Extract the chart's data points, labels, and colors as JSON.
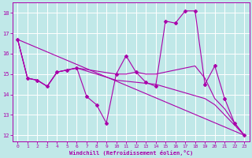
{
  "xlabel": "Windchill (Refroidissement éolien,°C)",
  "xlim": [
    -0.5,
    23.5
  ],
  "ylim": [
    11.7,
    18.5
  ],
  "xticks": [
    0,
    1,
    2,
    3,
    4,
    5,
    6,
    7,
    8,
    9,
    10,
    11,
    12,
    13,
    14,
    15,
    16,
    17,
    18,
    19,
    20,
    21,
    22,
    23
  ],
  "yticks": [
    12,
    13,
    14,
    15,
    16,
    17,
    18
  ],
  "bg_color": "#c0e8e8",
  "line_color": "#aa00aa",
  "grid_color": "#ffffff",
  "lines": [
    {
      "x": [
        0,
        1,
        2,
        3,
        4,
        5,
        6,
        7,
        8,
        9,
        10,
        11,
        12,
        13,
        14,
        15,
        16,
        17,
        18,
        19,
        20,
        21,
        22,
        23
      ],
      "y": [
        16.7,
        14.8,
        14.7,
        14.4,
        15.1,
        15.2,
        15.3,
        13.9,
        13.5,
        12.6,
        15.0,
        15.9,
        15.1,
        14.6,
        14.4,
        17.6,
        17.5,
        18.1,
        18.1,
        14.5,
        15.4,
        13.8,
        12.6,
        12.0
      ],
      "marker": true
    },
    {
      "x": [
        0,
        1,
        2,
        3,
        4,
        5,
        6,
        10,
        11,
        12,
        13,
        14,
        18,
        19,
        20,
        21,
        22,
        23
      ],
      "y": [
        16.7,
        14.8,
        14.7,
        14.4,
        15.1,
        15.2,
        15.3,
        15.0,
        15.0,
        15.1,
        15.0,
        15.0,
        15.4,
        14.8,
        13.8,
        13.3,
        12.6,
        12.0
      ],
      "marker": false
    },
    {
      "x": [
        0,
        1,
        2,
        3,
        4,
        5,
        6,
        10,
        14,
        19,
        20,
        21,
        22,
        23
      ],
      "y": [
        16.7,
        14.8,
        14.7,
        14.4,
        15.1,
        15.2,
        15.3,
        14.7,
        14.5,
        13.8,
        13.5,
        13.0,
        12.5,
        12.0
      ],
      "marker": false
    },
    {
      "x": [
        0,
        23
      ],
      "y": [
        16.7,
        12.0
      ],
      "marker": false
    }
  ]
}
